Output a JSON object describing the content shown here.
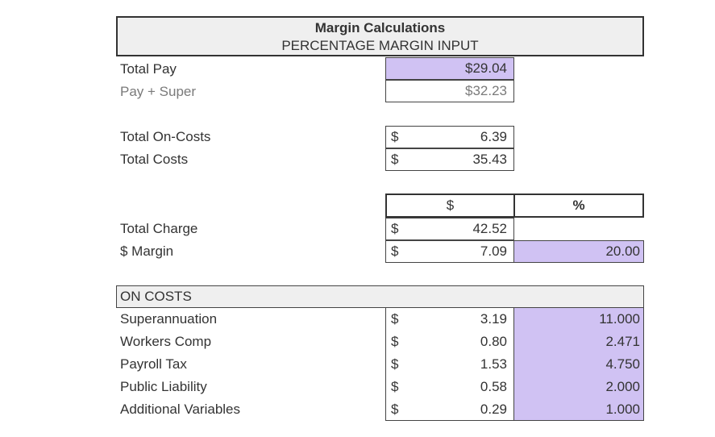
{
  "header": {
    "title": "Margin Calculations",
    "subtitle": "PERCENTAGE MARGIN INPUT"
  },
  "pay": {
    "total_pay_label": "Total Pay",
    "total_pay_value": "$29.04",
    "pay_super_label": "Pay + Super",
    "pay_super_value": "$32.23"
  },
  "costs": {
    "currency": "$",
    "on_costs_label": "Total On-Costs",
    "on_costs_value": "6.39",
    "total_costs_label": "Total Costs",
    "total_costs_value": "35.43"
  },
  "columns": {
    "dollar_header": "$",
    "percent_header": "%"
  },
  "charge": {
    "total_charge_label": "Total Charge",
    "total_charge_value": "42.52",
    "margin_label": "$ Margin",
    "margin_value": "7.09",
    "margin_percent": "20.00"
  },
  "on_costs": {
    "header": "ON COSTS",
    "rows": [
      {
        "label": "Superannuation",
        "currency": "$",
        "value": "3.19",
        "percent": "11.000"
      },
      {
        "label": "Workers Comp",
        "currency": "$",
        "value": "0.80",
        "percent": "2.471"
      },
      {
        "label": "Payroll Tax",
        "currency": "$",
        "value": "1.53",
        "percent": "4.750"
      },
      {
        "label": "Public Liability",
        "currency": "$",
        "value": "0.58",
        "percent": "2.000"
      },
      {
        "label": "Additional Variables",
        "currency": "$",
        "value": "0.29",
        "percent": "1.000"
      }
    ]
  },
  "colors": {
    "input_fill": "#d0c2f3",
    "header_fill": "#efefef"
  }
}
